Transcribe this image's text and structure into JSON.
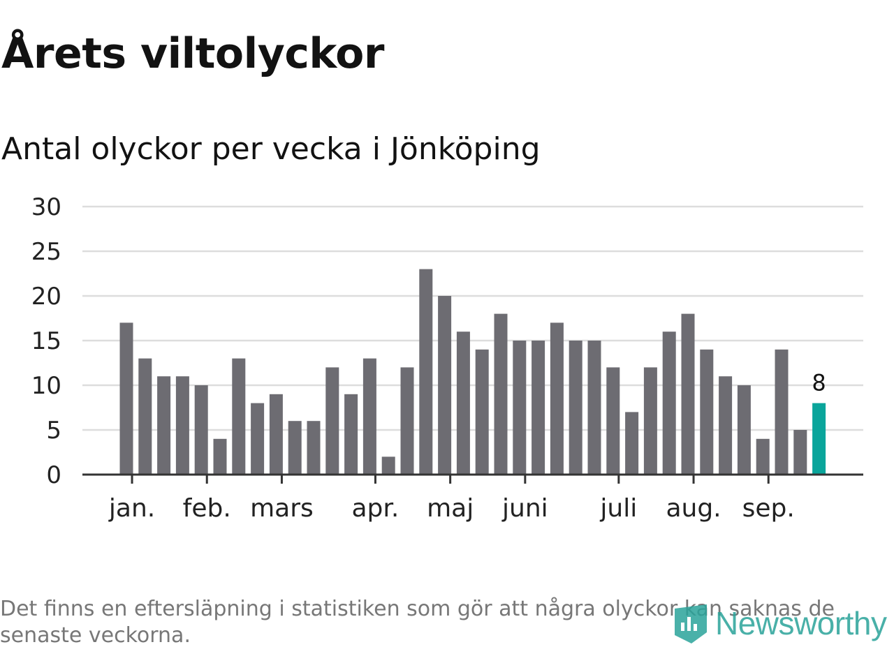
{
  "header": {
    "title": "Årets viltolyckor",
    "subtitle": "Antal olyckor per vecka i Jönköping"
  },
  "footer": {
    "note": "Det finns en eftersläpning i statistiken som gör att några olyckor kan saknas de senaste veckorna.",
    "brand": "Newsworthy"
  },
  "colors": {
    "bar": "#6d6c72",
    "highlight": "#0aa59b",
    "grid": "#dddddd",
    "axis": "#333333"
  },
  "chart_data": {
    "type": "bar",
    "values": [
      17,
      13,
      11,
      11,
      10,
      4,
      13,
      8,
      9,
      6,
      6,
      12,
      9,
      13,
      2,
      12,
      23,
      20,
      16,
      14,
      18,
      15,
      15,
      17,
      15,
      15,
      12,
      7,
      12,
      16,
      18,
      14,
      11,
      10,
      4,
      14,
      5,
      8
    ],
    "highlight_index": 37,
    "highlight_label": "8",
    "ylim": [
      0,
      30
    ],
    "yticks": [
      "0",
      "5",
      "10",
      "15",
      "20",
      "25",
      "30"
    ],
    "month_labels": [
      {
        "label": "jan.",
        "bar_index": 0.3
      },
      {
        "label": "feb.",
        "bar_index": 4.3
      },
      {
        "label": "mars",
        "bar_index": 8.3
      },
      {
        "label": "apr.",
        "bar_index": 13.3
      },
      {
        "label": "maj",
        "bar_index": 17.3
      },
      {
        "label": "juni",
        "bar_index": 21.3
      },
      {
        "label": "juli",
        "bar_index": 26.3
      },
      {
        "label": "aug.",
        "bar_index": 30.3
      },
      {
        "label": "sep.",
        "bar_index": 34.3
      }
    ],
    "grid": true,
    "legend": "none"
  }
}
